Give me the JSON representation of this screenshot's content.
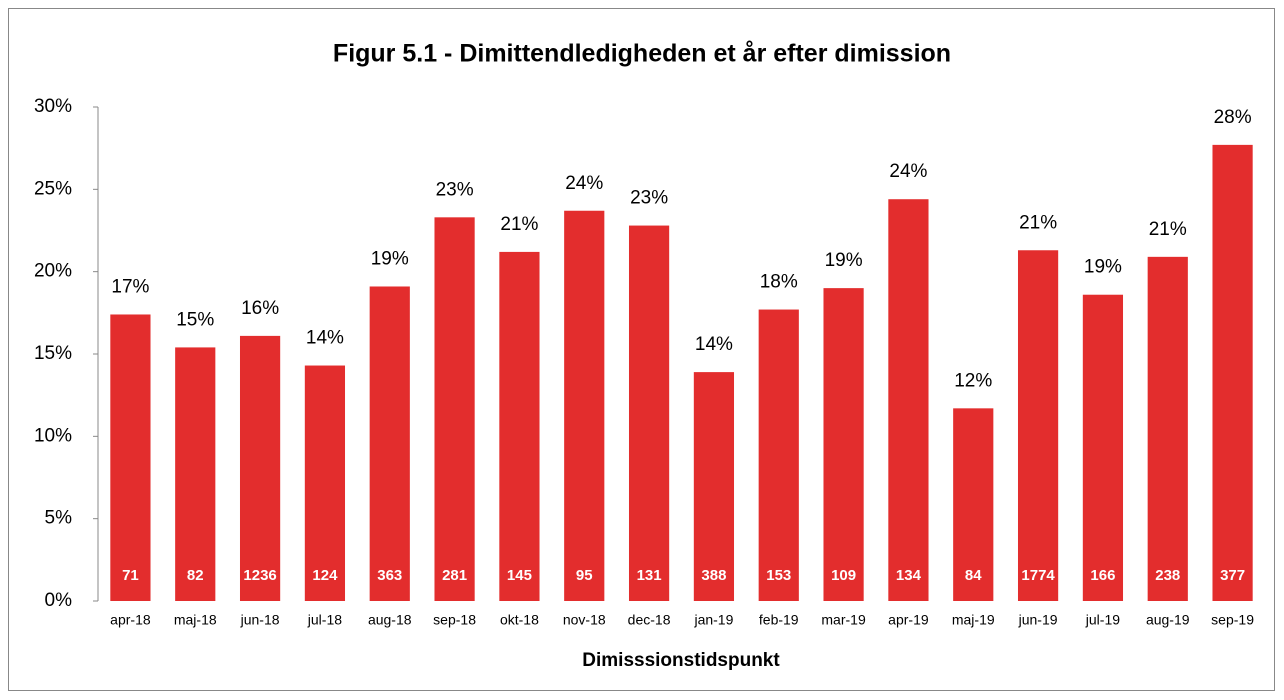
{
  "chart_data": {
    "type": "bar",
    "title": "Figur 5.1 - Dimittendledigheden et år efter dimission",
    "x_label": "Dimisssionstidspunkt",
    "categories": [
      "apr-18",
      "maj-18",
      "jun-18",
      "jul-18",
      "aug-18",
      "sep-18",
      "okt-18",
      "nov-18",
      "dec-18",
      "jan-19",
      "feb-19",
      "mar-19",
      "apr-19",
      "maj-19",
      "jun-19",
      "jul-19",
      "aug-19",
      "sep-19"
    ],
    "values": [
      17.4,
      15.4,
      16.1,
      14.3,
      19.1,
      23.3,
      21.2,
      23.7,
      22.8,
      13.9,
      17.7,
      19.0,
      24.4,
      11.7,
      21.3,
      18.6,
      20.9,
      27.7
    ],
    "value_labels": [
      "17%",
      "15%",
      "16%",
      "14%",
      "19%",
      "23%",
      "21%",
      "24%",
      "23%",
      "14%",
      "18%",
      "19%",
      "24%",
      "12%",
      "21%",
      "19%",
      "21%",
      "28%"
    ],
    "counts": [
      71,
      82,
      1236,
      124,
      363,
      281,
      145,
      95,
      131,
      388,
      153,
      109,
      134,
      84,
      1774,
      166,
      238,
      377
    ],
    "color": "#e32d2d",
    "ylim": [
      0,
      30
    ],
    "yticks": [
      {
        "value": 0,
        "label": "0%"
      },
      {
        "value": 5,
        "label": "5%"
      },
      {
        "value": 10,
        "label": "10%"
      },
      {
        "value": 15,
        "label": "15%"
      },
      {
        "value": 20,
        "label": "20%"
      },
      {
        "value": 25,
        "label": "25%"
      },
      {
        "value": 30,
        "label": "30%"
      }
    ],
    "grid": false
  }
}
